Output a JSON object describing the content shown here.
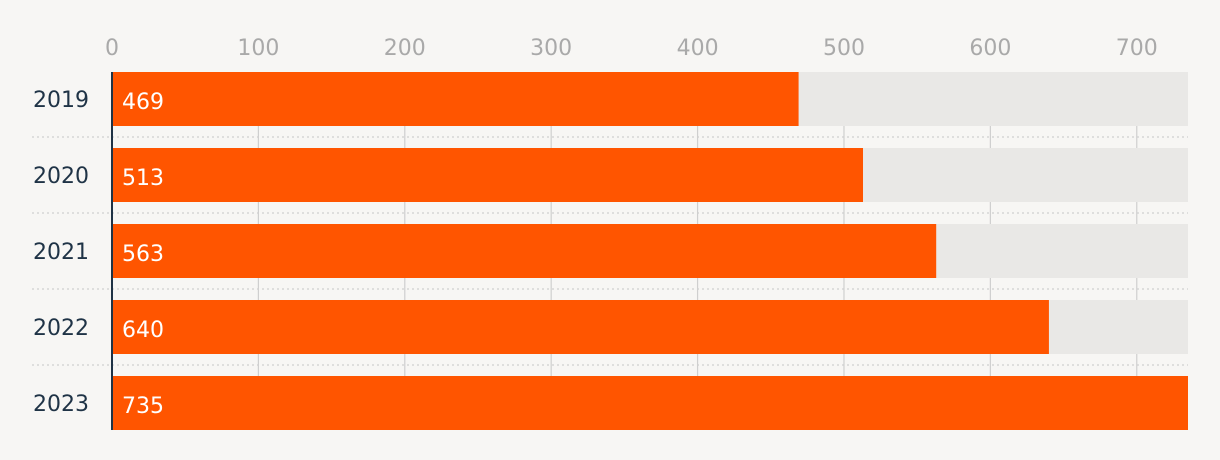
{
  "chart_data": {
    "type": "bar",
    "orientation": "horizontal",
    "categories": [
      "2019",
      "2020",
      "2021",
      "2022",
      "2023"
    ],
    "values": [
      469,
      513,
      563,
      640,
      735
    ],
    "data_labels": [
      "469",
      "513",
      "563",
      "640",
      "735"
    ],
    "xlim": [
      0,
      735
    ],
    "x_ticks": [
      0,
      100,
      200,
      300,
      400,
      500,
      600,
      700
    ],
    "x_tick_labels": [
      "0",
      "100",
      "200",
      "300",
      "400",
      "500",
      "600",
      "700"
    ],
    "grid": true,
    "colors": {
      "bar": "#ff5500",
      "track": "#e9e8e6",
      "background": "#f7f6f4",
      "grid": "#cfcfcf",
      "tick_label": "#a9a9a9",
      "category_label": "#1f3346",
      "data_label": "#ffffff",
      "axis": "#1f3346"
    }
  }
}
